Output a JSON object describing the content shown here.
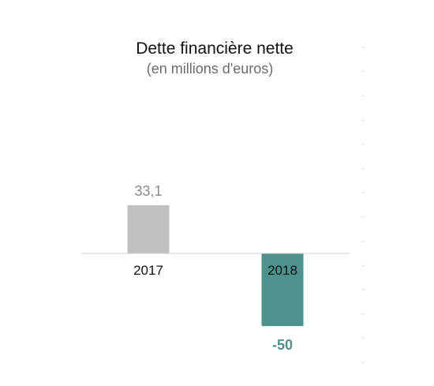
{
  "chart_data": {
    "type": "bar",
    "title": "Dette financière nette",
    "subtitle": "(en millions d'euros)",
    "xlabel": "",
    "ylabel": "",
    "categories": [
      "2017",
      "2018"
    ],
    "values": [
      33.1,
      -50
    ],
    "value_labels": [
      "33,1",
      "-50"
    ],
    "ylim": [
      -50,
      33.1
    ],
    "grid": false,
    "legend": "none",
    "bar_colors": [
      "#c0c0c0",
      "#4e918d"
    ],
    "value_label_colors": [
      "#8a8a8a",
      "#4e918d"
    ]
  }
}
